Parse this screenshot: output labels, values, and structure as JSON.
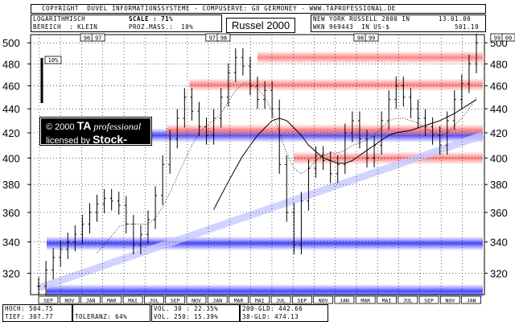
{
  "header": {
    "copyright": "COPYRIGHT  DUVEL INFORMATIONSSYSTEME - COMPUSERVE: GO GERMONEY - WWW.TAPROFESSIONAL.DE",
    "log_label": "LOGARITHMISCH",
    "scale_label": "SCALE : 71%",
    "bereich_label": "BEREICH  : KLEIN",
    "proz_label": "PROZ.MASS.:  10%",
    "instrument": "NEW YORK RUSSELL 2000 IN",
    "date": "13.01.00",
    "wkn": "WKN 969443  IN US-$",
    "last_value": "501.19",
    "pct_marker": "10%"
  },
  "chart_data": {
    "type": "ohlc",
    "title": "Russel 2000",
    "y_ticks": [
      320,
      340,
      360,
      380,
      400,
      420,
      440,
      460,
      480,
      500
    ],
    "ylim": [
      307,
      508
    ],
    "year_labels": [
      {
        "label": "96",
        "month_index": 0
      },
      {
        "label": "97",
        "month_index": 1
      },
      {
        "label": "97",
        "month_index": 11
      },
      {
        "label": "98",
        "month_index": 12
      },
      {
        "label": "98",
        "month_index": 24
      },
      {
        "label": "99",
        "month_index": 25
      },
      {
        "label": "99",
        "month_index": 36
      },
      {
        "label": "00",
        "month_index": 37
      }
    ],
    "x_months": [
      "SEP",
      "NOV",
      "JAN",
      "MAR",
      "MAI",
      "JUL",
      "SEP",
      "NOV",
      "JAN",
      "MAR",
      "MAI",
      "JUL",
      "SEP",
      "NOV",
      "JAN",
      "MAR",
      "MAI",
      "JUL",
      "SEP",
      "NOV",
      "JAN"
    ],
    "closes": [
      312,
      322,
      330,
      335,
      340,
      345,
      352,
      360,
      366,
      370,
      368,
      365,
      352,
      338,
      345,
      355,
      372,
      395,
      415,
      432,
      450,
      438,
      425,
      418,
      432,
      450,
      472,
      486,
      478,
      460,
      448,
      456,
      440,
      395,
      360,
      338,
      368,
      392,
      402,
      398,
      388,
      395,
      420,
      430,
      415,
      400,
      410,
      430,
      448,
      460,
      450,
      440,
      432,
      425,
      418,
      410,
      430,
      448,
      462,
      480,
      500
    ],
    "sma30": [
      null,
      null,
      null,
      null,
      null,
      null,
      null,
      null,
      333,
      338,
      344,
      350,
      352,
      352,
      352,
      352,
      356,
      364,
      374,
      386,
      398,
      410,
      420,
      426,
      430,
      436,
      446,
      456,
      462,
      462,
      458,
      450,
      438,
      420,
      404,
      392,
      388,
      392,
      398,
      402,
      404,
      404,
      406,
      410,
      412,
      414,
      418,
      424,
      430,
      432,
      432,
      430,
      428,
      424,
      420,
      418,
      420,
      426,
      432,
      440,
      450
    ],
    "gld200": [
      null,
      null,
      null,
      null,
      null,
      null,
      null,
      null,
      null,
      null,
      null,
      null,
      null,
      null,
      null,
      null,
      null,
      null,
      null,
      null,
      null,
      null,
      null,
      null,
      362,
      372,
      382,
      392,
      402,
      410,
      418,
      424,
      430,
      432,
      430,
      424,
      418,
      410,
      405,
      400,
      398,
      396,
      396,
      398,
      402,
      406,
      410,
      414,
      418,
      420,
      421,
      422,
      424,
      426,
      428,
      430,
      433,
      436,
      440,
      444,
      448
    ],
    "support_levels": [
      309,
      339,
      418
    ],
    "resistance_levels": [
      400,
      422,
      461,
      486
    ],
    "trend_channel_start": [
      311,
      0
    ],
    "trend_channel_end": [
      418,
      60
    ]
  },
  "footer": {
    "hoch": "HOCH: 504.75",
    "tief": "TIEF: 307.77",
    "toleranz": "TOLERANZ: 64%",
    "vol30": "VOL. 30 : 22.35%",
    "vol250": "VOL. 250: 15.39%",
    "gld200": "200-GLD: 442.66",
    "gld38": "38-GLD: 474.13"
  },
  "watermark": {
    "line1_prefix": "© 2000 ",
    "ta": "TA",
    "professional": " professional",
    "line2_prefix": "licensed by ",
    "stockworld": "Stock-World"
  }
}
